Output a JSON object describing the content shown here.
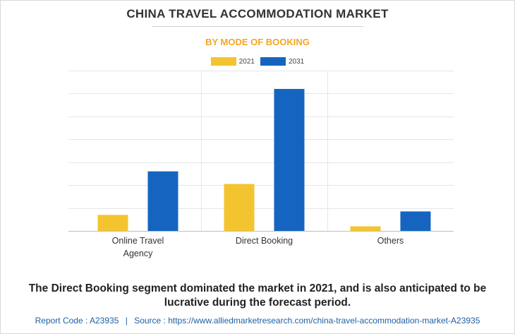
{
  "header": {
    "title": "CHINA TRAVEL ACCOMMODATION MARKET",
    "subtitle": "BY MODE OF BOOKING"
  },
  "colors": {
    "series_2021": "#f4c430",
    "series_2031": "#1565c0",
    "subtitle": "#f5a623",
    "source_link": "#1f5fa6"
  },
  "chart_data": {
    "type": "bar",
    "categories": [
      "Online Travel Agency",
      "Direct Booking",
      "Others"
    ],
    "category_label_lines": [
      [
        "Online Travel",
        "Agency"
      ],
      [
        "Direct Booking"
      ],
      [
        "Others"
      ]
    ],
    "series": [
      {
        "name": "2021",
        "values": [
          0.7,
          2.05,
          0.2
        ]
      },
      {
        "name": "2031",
        "values": [
          2.6,
          6.2,
          0.85
        ]
      }
    ],
    "ylim": [
      0,
      7
    ],
    "y_gridline_step": 1,
    "grid": true,
    "legend": "top-center",
    "xlabel": "",
    "ylabel": ""
  },
  "footnote": "The Direct Booking segment dominated the market in 2021, and is also anticipated to be lucrative during the forecast period.",
  "source": {
    "report_code": "Report Code : A23935",
    "separator": "|",
    "source_text": "Source : https://www.alliedmarketresearch.com/china-travel-accommodation-market-A23935"
  }
}
